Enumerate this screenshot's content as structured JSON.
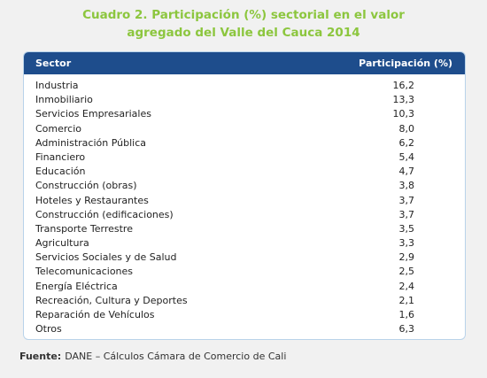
{
  "header": {
    "title": "Cuadro 2. Participación (%) sectorial en el valor agregado del Valle del Cauca 2014"
  },
  "table": {
    "columns": [
      "Sector",
      "Participación (%)"
    ],
    "rows": [
      [
        "Industria",
        "16,2"
      ],
      [
        "Inmobiliario",
        "13,3"
      ],
      [
        "Servicios Empresariales",
        "10,3"
      ],
      [
        "Comercio",
        "8,0"
      ],
      [
        "Administración Pública",
        "6,2"
      ],
      [
        "Financiero",
        "5,4"
      ],
      [
        "Educación",
        "4,7"
      ],
      [
        "Construcción (obras)",
        "3,8"
      ],
      [
        "Hoteles y Restaurantes",
        "3,7"
      ],
      [
        "Construcción (edificaciones)",
        "3,7"
      ],
      [
        "Transporte Terrestre",
        "3,5"
      ],
      [
        "Agricultura",
        "3,3"
      ],
      [
        "Servicios Sociales y de Salud",
        "2,9"
      ],
      [
        "Telecomunicaciones",
        "2,5"
      ],
      [
        "Energía Eléctrica",
        "2,4"
      ],
      [
        "Recreación, Cultura y Deportes",
        "2,1"
      ],
      [
        "Reparación de Vehículos",
        "1,6"
      ],
      [
        "Otros",
        "6,3"
      ]
    ]
  },
  "footer": {
    "label": "Fuente:",
    "text": "DANE – Cálculos Cámara de Comercio de Cali"
  }
}
